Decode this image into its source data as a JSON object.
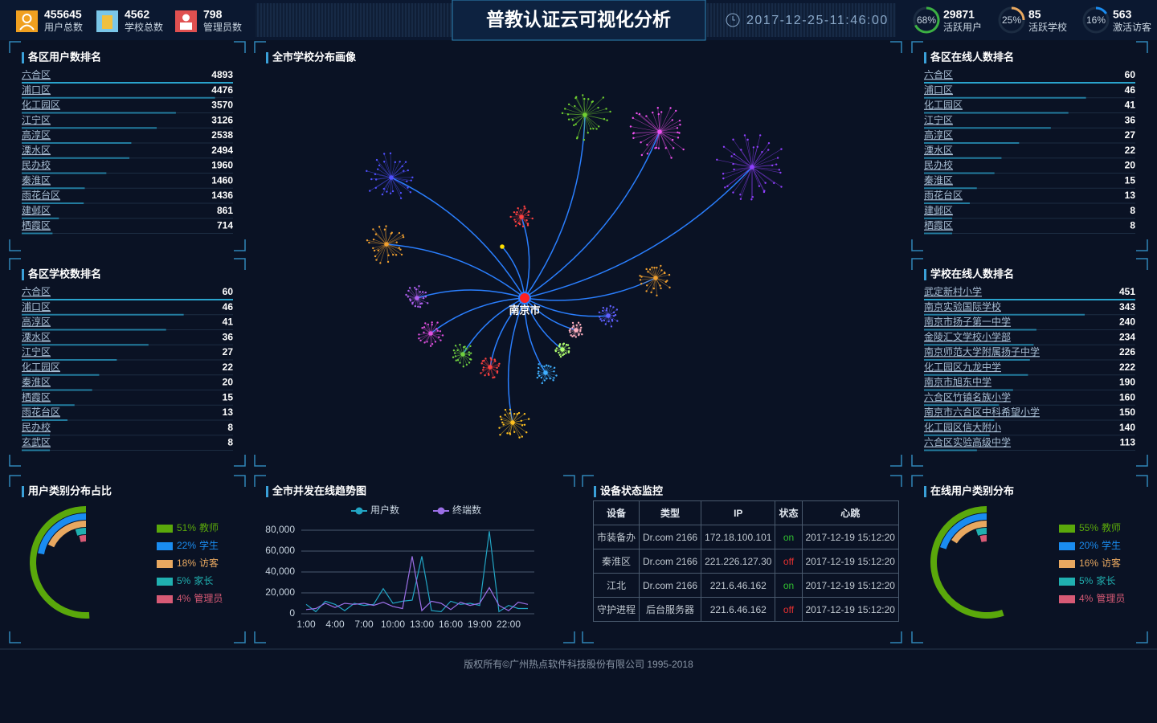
{
  "header": {
    "title": "普教认证云可视化分析",
    "datetime": "2017-12-25-11:46:00"
  },
  "stats": [
    {
      "value": 455645,
      "label": "用户总数"
    },
    {
      "value": 4562,
      "label": "学校总数"
    },
    {
      "value": 798,
      "label": "管理员数"
    }
  ],
  "rates": [
    {
      "percent": 68,
      "percent_label": "68%",
      "value": 29871,
      "label": "活跃用户",
      "color": "#3cb043"
    },
    {
      "percent": 25,
      "percent_label": "25%",
      "value": 85,
      "label": "活跃学校",
      "color": "#e8a860"
    },
    {
      "percent": 16,
      "percent_label": "16%",
      "value": 563,
      "label": "激活访客",
      "color": "#1a8cf0"
    }
  ],
  "chart_data": [
    {
      "type": "bar",
      "title": "各区用户数排名",
      "categories": [
        "六合区",
        "浦口区",
        "化工园区",
        "江宁区",
        "高淳区",
        "溧水区",
        "民办校",
        "秦淮区",
        "雨花台区",
        "建邺区",
        "栖霞区"
      ],
      "values": [
        4893,
        4476,
        3570,
        3126,
        2538,
        2494,
        1960,
        1460,
        1436,
        861,
        714
      ],
      "xlim": [
        0,
        4893
      ],
      "color": "#2aa3cc"
    },
    {
      "type": "bar",
      "title": "各区学校数排名",
      "categories": [
        "六合区",
        "浦口区",
        "高淳区",
        "溧水区",
        "江宁区",
        "化工园区",
        "秦淮区",
        "栖霞区",
        "雨花台区",
        "民办校",
        "玄武区"
      ],
      "values": [
        60,
        46,
        41,
        36,
        27,
        22,
        20,
        15,
        13,
        8,
        8
      ],
      "xlim": [
        0,
        60
      ],
      "color": "#2aa3cc"
    },
    {
      "type": "graph",
      "title": "全市学校分布画像",
      "center": "南京市"
    },
    {
      "type": "bar",
      "title": "各区在线人数排名",
      "categories": [
        "六合区",
        "浦口区",
        "化工园区",
        "江宁区",
        "高淳区",
        "溧水区",
        "民办校",
        "秦淮区",
        "雨花台区",
        "建邺区",
        "栖霞区"
      ],
      "values": [
        60,
        46,
        41,
        36,
        27,
        22,
        20,
        15,
        13,
        8,
        8
      ],
      "xlim": [
        0,
        60
      ],
      "color": "#2aa3cc"
    },
    {
      "type": "bar",
      "title": "学校在线人数排名",
      "categories": [
        "武定新村小学",
        "南京实验国际学校",
        "南京市扬子第一中学",
        "金陵汇文学校小学部",
        "南京师范大学附属扬子中学",
        "化工园区九龙中学",
        "南京市旭东中学",
        "六合区竹镇名族小学",
        "南京市六合区中科希望小学",
        "化工园区信大附小",
        "六合区实验高级中学"
      ],
      "values": [
        451,
        343,
        240,
        234,
        226,
        222,
        190,
        160,
        150,
        140,
        113
      ],
      "xlim": [
        0,
        451
      ],
      "color": "#2aa3cc"
    },
    {
      "type": "radial_bar",
      "title": "用户类别分布占比",
      "categories": [
        "教师",
        "学生",
        "访客",
        "家长",
        "管理员"
      ],
      "values": [
        51,
        22,
        18,
        5,
        4
      ],
      "value_labels": [
        "51%",
        "22%",
        "18%",
        "5%",
        "4%"
      ],
      "colors": [
        "#5aa80b",
        "#1a8cf0",
        "#e8a860",
        "#20b0b0",
        "#d75a75"
      ],
      "rlim": [
        0,
        100
      ]
    },
    {
      "type": "line",
      "title": "全市并发在线趋势图",
      "categories": [
        "1:00",
        null,
        null,
        "4:00",
        null,
        null,
        "7:00",
        null,
        null,
        "10:00",
        null,
        null,
        "13:00",
        null,
        null,
        "16:00",
        null,
        null,
        "19:00",
        null,
        null,
        "22:00",
        null,
        null
      ],
      "series": [
        {
          "name": "用户数",
          "color": "#22a5c4",
          "values": [
            9000,
            2000,
            12000,
            9000,
            3000,
            10000,
            8000,
            9000,
            24000,
            10000,
            12000,
            13000,
            55000,
            3000,
            2000,
            12000,
            9000,
            10000,
            8000,
            79000,
            2000,
            8000,
            5000,
            5000
          ]
        },
        {
          "name": "终端数",
          "color": "#9b6fe6",
          "values": [
            4000,
            5000,
            10000,
            6000,
            10000,
            9000,
            10000,
            8000,
            11000,
            7000,
            5000,
            55000,
            3000,
            12000,
            10000,
            4000,
            11000,
            8000,
            10000,
            25000,
            8000,
            3000,
            11000,
            9000
          ]
        }
      ],
      "ylim": [
        0,
        80000
      ],
      "yticks": [
        0,
        {
          "value": 20000,
          "label": "20,000"
        },
        {
          "value": 40000,
          "label": "40,000"
        },
        {
          "value": 60000,
          "label": "60,000"
        },
        {
          "value": 80000,
          "label": "80,000"
        }
      ],
      "grid": true
    },
    {
      "type": "radial_bar",
      "title": "在线用户类别分布",
      "categories": [
        "教师",
        "学生",
        "访客",
        "家长",
        "管理员"
      ],
      "values": [
        55,
        20,
        16,
        5,
        4
      ],
      "value_labels": [
        "55%",
        "20%",
        "16%",
        "5%",
        "4%"
      ],
      "colors": [
        "#5aa80b",
        "#1a8cf0",
        "#e8a860",
        "#20b0b0",
        "#d75a75"
      ],
      "rlim": [
        0,
        100
      ]
    }
  ],
  "table": {
    "title": "设备状态监控",
    "columns": [
      "设备",
      "类型",
      "IP",
      "状态",
      "心跳"
    ],
    "rows": [
      [
        "市装备办",
        "Dr.com 2166",
        "172.18.100.101",
        "on",
        "2017-12-19 15:12:20"
      ],
      [
        "秦淮区",
        "Dr.com 2166",
        "221.226.127.30",
        "off",
        "2017-12-19 15:12:20"
      ],
      [
        "江北",
        "Dr.com 2166",
        "221.6.46.162",
        "on",
        "2017-12-19 15:12:20"
      ],
      [
        "守护进程",
        "后台服务器",
        "221.6.46.162",
        "off",
        "2017-12-19 15:12:20"
      ]
    ],
    "status_colors": {
      "on": "#30c030",
      "off": "#e53030"
    }
  },
  "footer": "版权所有©广州热点软件科技股份有限公司 1995-2018"
}
